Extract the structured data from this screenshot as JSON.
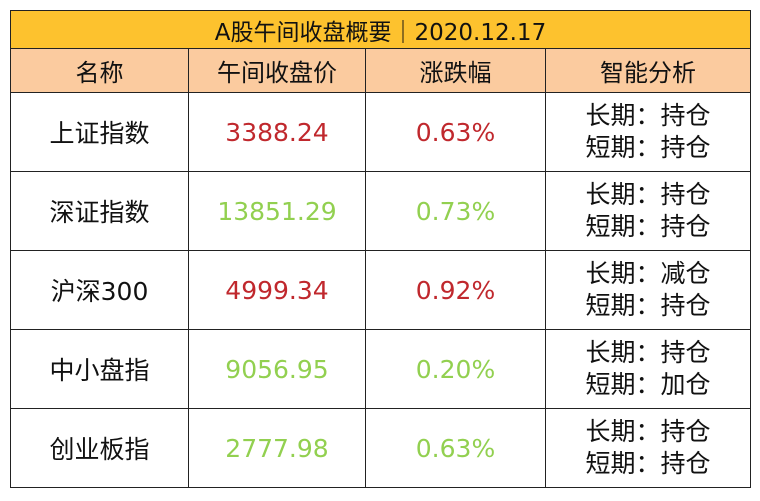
{
  "title": "A股午间收盘概要｜2020.12.17",
  "table": {
    "header": [
      "名称",
      "午间收盘价",
      "涨跌幅",
      "智能分析"
    ],
    "rows": [
      {
        "name": "上证指数",
        "price": "3388.24",
        "change": "0.63%",
        "color": "#c0282d",
        "analysis": [
          "长期：持仓",
          "短期：持仓"
        ]
      },
      {
        "name": "深证指数",
        "price": "13851.29",
        "change": "0.73%",
        "color": "#92d050",
        "analysis": [
          "长期：持仓",
          "短期：持仓"
        ]
      },
      {
        "name": "沪深300",
        "price": "4999.34",
        "change": "0.92%",
        "color": "#c0282d",
        "analysis": [
          "长期：减仓",
          "短期：持仓"
        ]
      },
      {
        "name": "中小盘指",
        "price": "9056.95",
        "change": "0.20%",
        "color": "#92d050",
        "analysis": [
          "长期：持仓",
          "短期：加仓"
        ]
      },
      {
        "name": "创业板指",
        "price": "2777.98",
        "change": "0.63%",
        "color": "#92d050",
        "analysis": [
          "长期：持仓",
          "短期：持仓"
        ]
      }
    ]
  }
}
